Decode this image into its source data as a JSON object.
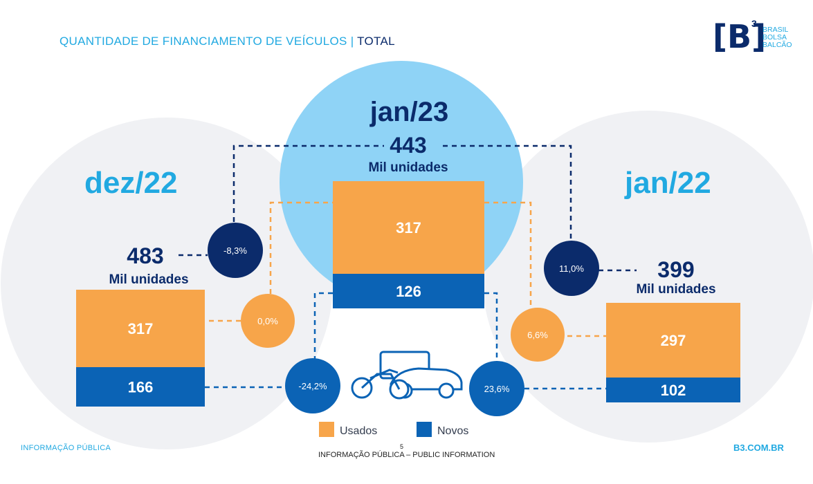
{
  "header": {
    "title_main": "QUANTIDADE DE FINANCIAMENTO DE VEÍCULOS",
    "title_separator": "|",
    "title_total": "TOTAL"
  },
  "logo": {
    "mark": "[B]",
    "superscript": "3",
    "line1": "BRASIL",
    "line2": "BOLSA",
    "line3": "BALCÃO"
  },
  "colors": {
    "usados": "#f7a54a",
    "novos": "#0b63b5",
    "dark_navy": "#0b2b6b",
    "light_blue": "#8fd3f6",
    "bg_grey": "#f0f1f4",
    "accent_cyan": "#21a9e1"
  },
  "chart_data": {
    "type": "bar",
    "stacked": true,
    "categories": [
      "dez/22",
      "jan/23",
      "jan/22"
    ],
    "series": [
      {
        "name": "Usados",
        "values": [
          317,
          317,
          297
        ]
      },
      {
        "name": "Novos",
        "values": [
          166,
          126,
          102
        ]
      }
    ],
    "totals": [
      483,
      443,
      399
    ],
    "total_labels": [
      "483",
      "443",
      "399"
    ],
    "unit_label": "Mil unidades",
    "value_labels": {
      "usados": [
        "317",
        "317",
        "297"
      ],
      "novos": [
        "166",
        "126",
        "102"
      ]
    },
    "variations": {
      "total_vs_dez22": "-8,3%",
      "total_vs_jan22": "11,0%",
      "usados_vs_dez22": "0,0%",
      "usados_vs_jan22": "6,6%",
      "novos_vs_dez22": "-24,2%",
      "novos_vs_jan22": "23,6%"
    },
    "legend": [
      {
        "label": "Usados",
        "color": "#f7a54a"
      },
      {
        "label": "Novos",
        "color": "#0b63b5"
      }
    ],
    "legend_position": "bottom-center"
  },
  "icons": {
    "vehicles": "vehicles-icon"
  },
  "footer": {
    "left": "INFORMAÇÃO PÚBLICA",
    "page": "5",
    "center": "INFORMAÇÃO PÚBLICA – PUBLIC INFORMATION",
    "right": "B3.COM.BR"
  }
}
